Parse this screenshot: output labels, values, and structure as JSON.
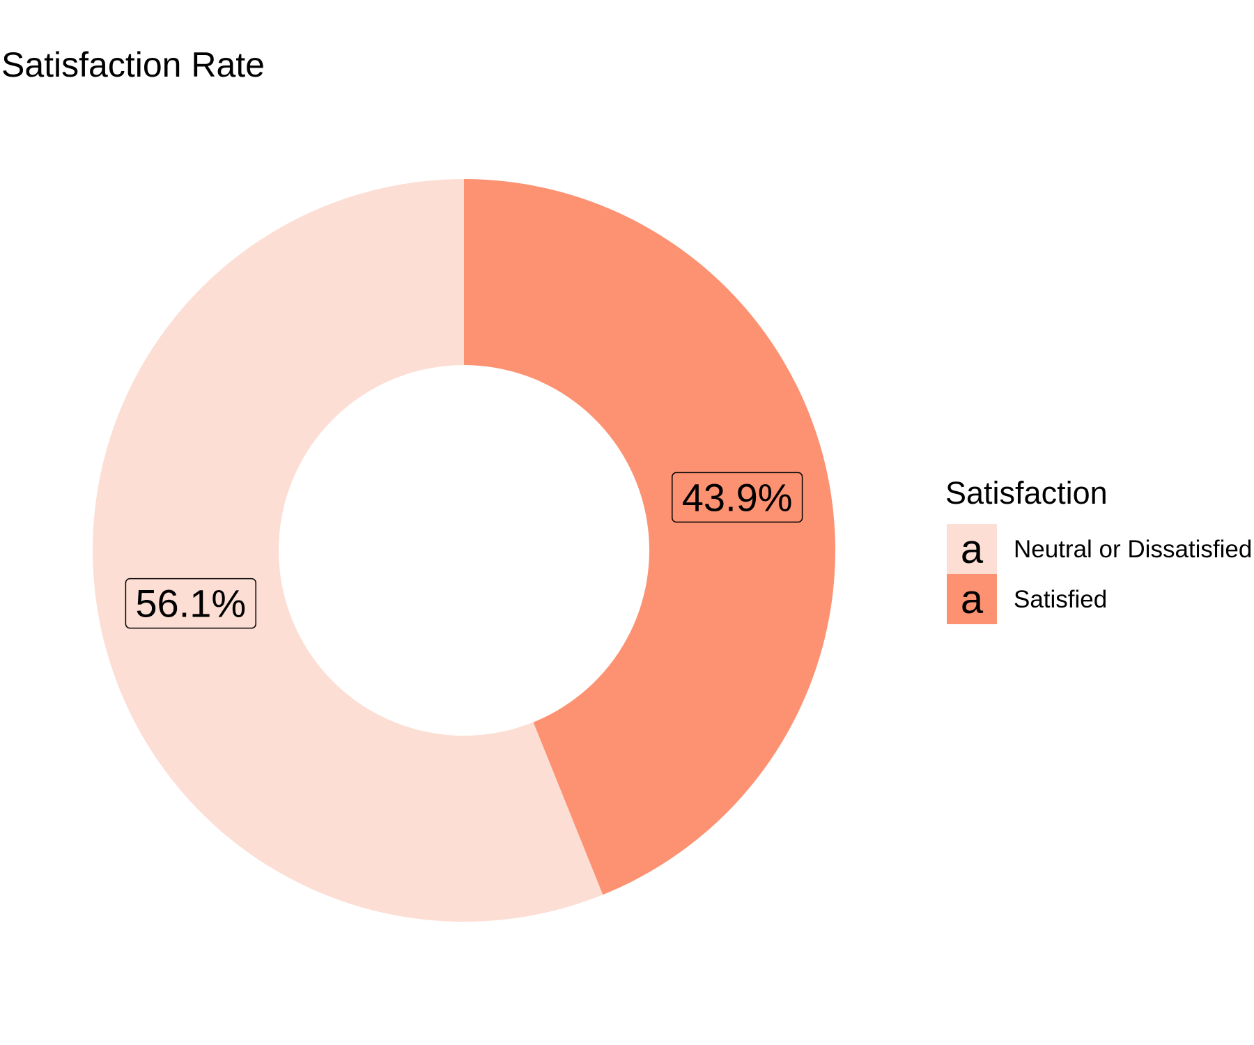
{
  "chart_data": {
    "type": "pie",
    "style": "donut",
    "title": "Satisfaction Rate",
    "categories": [
      "Satisfied",
      "Neutral or Dissatisfied"
    ],
    "values": [
      43.9,
      56.1
    ],
    "value_labels": [
      "43.9%",
      "56.1%"
    ],
    "colors": [
      "#FC9272",
      "#FCDED4"
    ],
    "legend": {
      "title": "Satisfaction",
      "placement": "right",
      "key_glyph": "a",
      "items": [
        {
          "label": "Neutral or Dissatisfied",
          "color": "#FCDED4"
        },
        {
          "label": "Satisfied",
          "color": "#FC9272"
        }
      ]
    }
  }
}
